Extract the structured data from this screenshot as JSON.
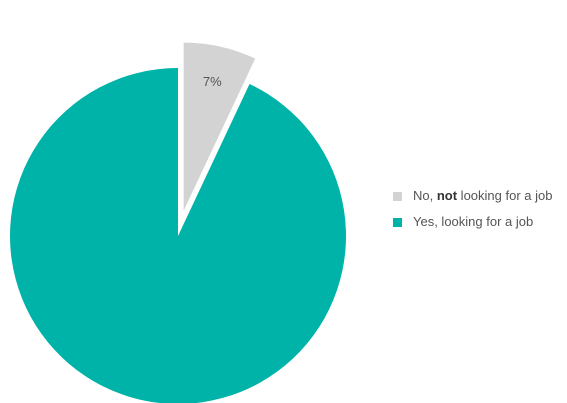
{
  "chart_data": {
    "type": "pie",
    "slices": [
      {
        "key": "no",
        "label": "No, not looking for a job",
        "label_parts": [
          "No, ",
          "not",
          " looking for a job"
        ],
        "value": 7,
        "value_label": "7%",
        "color": "#d3d3d3",
        "exploded": true
      },
      {
        "key": "yes",
        "label": "Yes, looking for a job",
        "value": 93,
        "value_label": "",
        "color": "#00b3a8",
        "exploded": false
      }
    ],
    "legend_position": "right"
  }
}
